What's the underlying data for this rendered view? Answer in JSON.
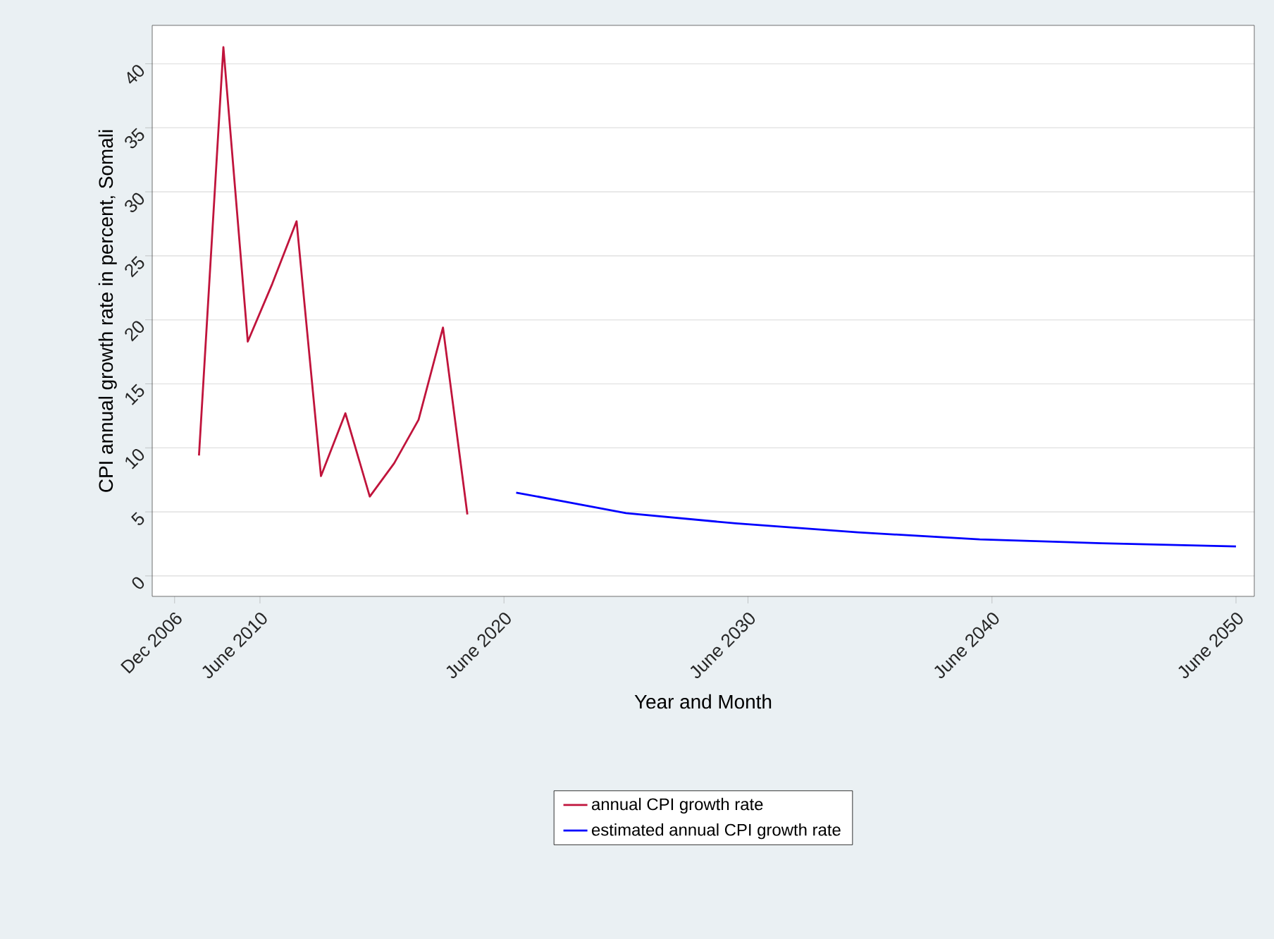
{
  "chart_data": {
    "type": "line",
    "xlabel": "Year and Month",
    "ylabel": "CPI annual growth rate in percent, Somali",
    "series": [
      {
        "name": "annual CPI growth rate",
        "color": "#c0143c",
        "x": [
          "2007-12",
          "2008-12",
          "2009-12",
          "2010-12",
          "2011-12",
          "2012-12",
          "2013-12",
          "2014-12",
          "2015-12",
          "2016-12",
          "2017-12",
          "2018-12"
        ],
        "values": [
          9.4,
          41.3,
          18.3,
          22.8,
          27.7,
          7.8,
          12.7,
          6.2,
          8.8,
          12.2,
          19.4,
          4.8
        ]
      },
      {
        "name": "estimated annual CPI growth rate",
        "color": "#0000ff",
        "x": [
          "2020-12",
          "2022-12",
          "2025-06",
          "2029-12",
          "2034-12",
          "2039-12",
          "2044-12",
          "2050-06"
        ],
        "values": [
          6.5,
          5.8,
          4.9,
          4.1,
          3.4,
          2.85,
          2.55,
          2.3
        ]
      }
    ],
    "xlim": [
      "2006-01",
      "2051-03"
    ],
    "xticks": [
      {
        "value": "2006-12",
        "label": "Dec 2006"
      },
      {
        "value": "2010-06",
        "label": "June 2010"
      },
      {
        "value": "2020-06",
        "label": "June 2020"
      },
      {
        "value": "2030-06",
        "label": "June 2030"
      },
      {
        "value": "2040-06",
        "label": "June 2040"
      },
      {
        "value": "2050-06",
        "label": "June 2050"
      }
    ],
    "ylim": [
      -1.6,
      43
    ],
    "yticks": [
      0,
      5,
      10,
      15,
      20,
      25,
      30,
      35,
      40
    ],
    "grid": "y",
    "legend": "bottom",
    "marker": "none",
    "line_style": "solid"
  }
}
